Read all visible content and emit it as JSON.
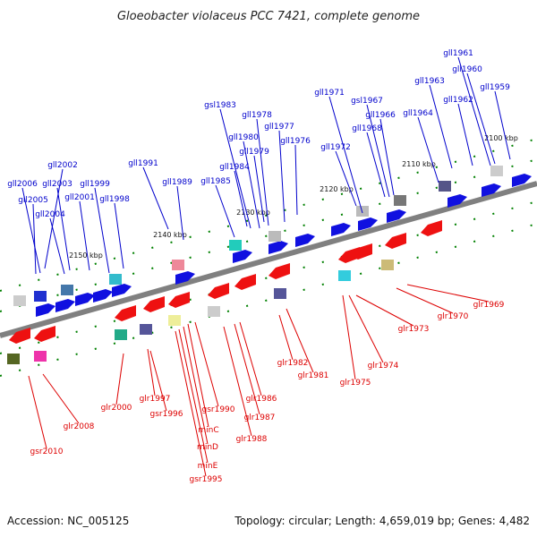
{
  "title": "Gloeobacter violaceus PCC 7421, complete genome",
  "footer": {
    "accession": "Accession: NC_005125",
    "summary": "Topology: circular; Length: 4,659,019 bp; Genes: 4,482"
  },
  "colors": {
    "forward_label": "#0000cc",
    "reverse_label": "#dd0000",
    "axis": "#808080",
    "tick": "#008000"
  },
  "ticks": [
    "2100 kbp",
    "2110 kbp",
    "2120 kbp",
    "2130 kbp",
    "2140 kbp",
    "2150 kbp"
  ],
  "labels": {
    "forward": [
      "gll1961",
      "gll1960",
      "gll1959",
      "gll1963",
      "gll1962",
      "gll1971",
      "gsl1967",
      "gll1966",
      "gll1964",
      "gll1968",
      "gll1972",
      "gsl1983",
      "gll1978",
      "gll1977",
      "gll1980",
      "gll1976",
      "gll1979",
      "gll1984",
      "gll1985",
      "gll1991",
      "gll1989",
      "gll2002",
      "gll2006",
      "gll2003",
      "gll1999",
      "gll2005",
      "gll2001",
      "gll1998",
      "gll2004"
    ],
    "reverse": [
      "glr1969",
      "glr1970",
      "glr1973",
      "glr1974",
      "glr1975",
      "glr1982",
      "glr1981",
      "glr1986",
      "glr1987",
      "glr1988",
      "gsr1990",
      "minC",
      "minD",
      "minE",
      "gsr1995",
      "glr1997",
      "gsr1996",
      "glr2000",
      "glr2008",
      "gsr2010"
    ]
  }
}
